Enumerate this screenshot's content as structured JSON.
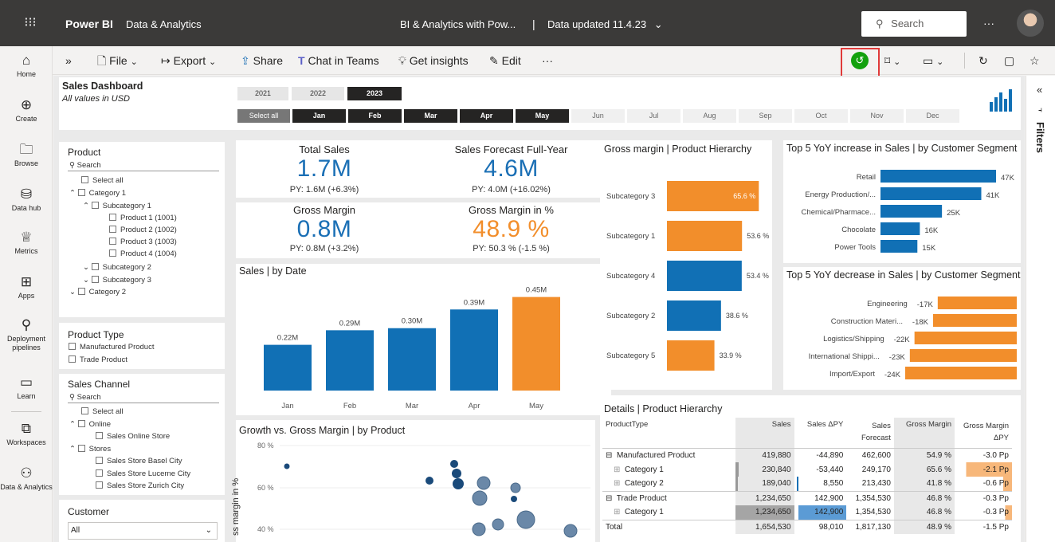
{
  "topbar": {
    "app_name": "Power BI",
    "workspace": "Data & Analytics",
    "report_title": "BI & Analytics with Pow...",
    "separator": "|",
    "data_updated": "Data updated 11.4.23",
    "search_placeholder": "Search",
    "more": "···"
  },
  "toolbar": {
    "expand": "»",
    "file": "File",
    "export": "Export",
    "share": "Share",
    "chat": "Chat in Teams",
    "insights": "Get insights",
    "edit": "Edit",
    "more": "···"
  },
  "nav": [
    {
      "label": "Home",
      "icon": "home-icon"
    },
    {
      "label": "Create",
      "icon": "plus-circle-icon"
    },
    {
      "label": "Browse",
      "icon": "folder-icon"
    },
    {
      "label": "Data hub",
      "icon": "database-icon"
    },
    {
      "label": "Metrics",
      "icon": "trophy-icon"
    },
    {
      "label": "Apps",
      "icon": "apps-icon"
    },
    {
      "label": "Deployment pipelines",
      "icon": "rocket-icon"
    },
    {
      "label": "Learn",
      "icon": "book-icon"
    },
    {
      "label": "Workspaces",
      "icon": "workspaces-icon"
    },
    {
      "label": "Data & Analytics",
      "icon": "workspace-people-icon"
    }
  ],
  "header": {
    "title": "Sales Dashboard",
    "subtitle": "All values in USD",
    "years": [
      "2021",
      "2022",
      "2023"
    ],
    "selected_year": "2023",
    "select_all": "Select all",
    "months": [
      "Jan",
      "Feb",
      "Mar",
      "Apr",
      "May",
      "Jun",
      "Jul",
      "Aug",
      "Sep",
      "Oct",
      "Nov",
      "Dec"
    ]
  },
  "slicers": {
    "product": {
      "title": "Product",
      "search": "Search",
      "items": [
        "Select all",
        "Category 1",
        "Subcategory 1",
        "Product 1 (1001)",
        "Product 2 (1002)",
        "Product 3 (1003)",
        "Product 4 (1004)",
        "Subcategory 2",
        "Subcategory 3",
        "Category 2"
      ]
    },
    "product_type": {
      "title": "Product Type",
      "items": [
        "Manufactured Product",
        "Trade Product"
      ]
    },
    "sales_channel": {
      "title": "Sales Channel",
      "search": "Search",
      "items": [
        "Select all",
        "Online",
        "Sales Online Store",
        "Stores",
        "Sales Store Basel City",
        "Sales Store Lucerne City",
        "Sales Store Zurich City"
      ]
    },
    "customer": {
      "title": "Customer",
      "value": "All"
    }
  },
  "kpis": {
    "total_sales": {
      "title": "Total Sales",
      "value": "1.7M",
      "sub": "PY: 1.6M (+6.3%)"
    },
    "forecast": {
      "title": "Sales Forecast Full-Year",
      "value": "4.6M",
      "sub": "PY: 4.0M (+16.02%)"
    },
    "gross_margin": {
      "title": "Gross Margin",
      "value": "0.8M",
      "sub": "PY: 0.8M (+3.2%)"
    },
    "gross_margin_pct": {
      "title": "Gross Margin in %",
      "value": "48.9 %",
      "sub": "PY: 50.3 % (-1.5 %)"
    }
  },
  "colors": {
    "blue": "#1170b5",
    "orange": "#f28e2b",
    "dark": "#252423"
  },
  "chart_data": [
    {
      "type": "bar",
      "title": "Sales | by Date",
      "categories": [
        "Jan",
        "Feb",
        "Mar",
        "Apr",
        "May"
      ],
      "values": [
        0.22,
        0.29,
        0.3,
        0.39,
        0.45
      ],
      "labels": [
        "0.22M",
        "0.29M",
        "0.30M",
        "0.39M",
        "0.45M"
      ],
      "highlight_index": 4
    },
    {
      "type": "bar",
      "title": "Gross margin | Product Hierarchy",
      "categories": [
        "Subcategory 3",
        "Subcategory 1",
        "Subcategory 4",
        "Subcategory 2",
        "Subcategory 5"
      ],
      "values": [
        65.6,
        53.6,
        53.4,
        38.6,
        33.9
      ],
      "labels": [
        "65.6 %",
        "53.6 %",
        "53.4 %",
        "38.6 %",
        "33.9 %"
      ],
      "colors": [
        "#f28e2b",
        "#f28e2b",
        "#1170b5",
        "#1170b5",
        "#f28e2b"
      ]
    },
    {
      "type": "bar",
      "title": "Top 5 YoY increase in Sales | by Customer Segment",
      "categories": [
        "Retail",
        "Energy Production/...",
        "Chemical/Pharmace...",
        "Chocolate",
        "Power Tools"
      ],
      "values": [
        47,
        41,
        25,
        16,
        15
      ],
      "labels": [
        "47K",
        "41K",
        "25K",
        "16K",
        "15K"
      ]
    },
    {
      "type": "bar",
      "title": "Top 5 YoY decrease in Sales | by Customer Segment",
      "categories": [
        "Engineering",
        "Construction Materi...",
        "Logistics/Shipping",
        "International Shippi...",
        "Import/Export"
      ],
      "values": [
        -17,
        -18,
        -22,
        -23,
        -24
      ],
      "labels": [
        "-17K",
        "-18K",
        "-22K",
        "-23K",
        "-24K"
      ]
    },
    {
      "type": "scatter",
      "title": "Growth vs. Gross Margin | by Product",
      "ylabel": "ss margin in %",
      "yticks": [
        "80 %",
        "60 %",
        "40 %"
      ]
    }
  ],
  "details": {
    "title": "Details | Product Hierarchy",
    "headers": [
      "ProductType",
      "Sales",
      "Sales ΔPY",
      "Sales Forecast",
      "Gross Margin",
      "Gross Margin ΔPY"
    ],
    "rows": [
      {
        "name": "Manufactured Product",
        "level": 0,
        "sales": "419,880",
        "dpy": "-44,890",
        "fc": "462,600",
        "gm": "54.9 %",
        "gmd": "-3.0 Pp",
        "bold": true
      },
      {
        "name": "Category 1",
        "level": 1,
        "sales": "230,840",
        "dpy": "-53,440",
        "fc": "249,170",
        "gm": "65.6 %",
        "gmd": "-2.1 Pp",
        "bold": false
      },
      {
        "name": "Category 2",
        "level": 1,
        "sales": "189,040",
        "dpy": "8,550",
        "fc": "213,430",
        "gm": "41.8 %",
        "gmd": "-0.6 Pp",
        "bold": false
      },
      {
        "name": "Trade Product",
        "level": 0,
        "sales": "1,234,650",
        "dpy": "142,900",
        "fc": "1,354,530",
        "gm": "46.8 %",
        "gmd": "-0.3 Pp",
        "bold": true
      },
      {
        "name": "Category 1",
        "level": 1,
        "sales": "1,234,650",
        "dpy": "142,900",
        "fc": "1,354,530",
        "gm": "46.8 %",
        "gmd": "-0.3 Pp",
        "bold": false
      },
      {
        "name": "Total",
        "level": -1,
        "sales": "1,654,530",
        "dpy": "98,010",
        "fc": "1,817,130",
        "gm": "48.9 %",
        "gmd": "-1.5 Pp",
        "bold": true
      }
    ]
  },
  "filters_label": "Filters"
}
